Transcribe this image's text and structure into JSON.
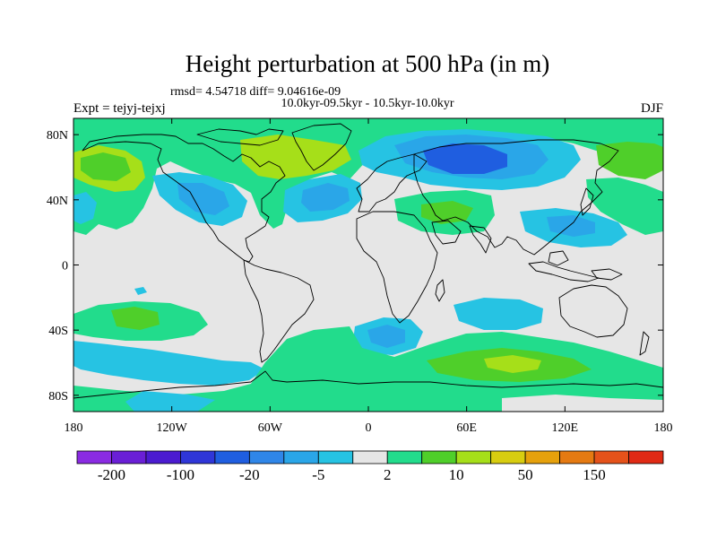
{
  "title": "Height perturbation at 500 hPa (in m)",
  "stats": "rmsd= 4.54718 diff= 9.04616e-09",
  "period": "10.0kyr-09.5kyr - 10.5kyr-10.0kyr",
  "experiment": "Expt = tejyj-tejxj",
  "season": "DJF",
  "map": {
    "lat_ticks": [
      {
        "value": 80,
        "label": "80N"
      },
      {
        "value": 40,
        "label": "40N"
      },
      {
        "value": 0,
        "label": "0"
      },
      {
        "value": -40,
        "label": "40S"
      },
      {
        "value": -80,
        "label": "80S"
      }
    ],
    "lon_ticks": [
      {
        "value": -180,
        "label": "180"
      },
      {
        "value": -120,
        "label": "120W"
      },
      {
        "value": -60,
        "label": "60W"
      },
      {
        "value": 0,
        "label": "0"
      },
      {
        "value": 60,
        "label": "60E"
      },
      {
        "value": 120,
        "label": "120E"
      },
      {
        "value": 180,
        "label": "180"
      }
    ]
  },
  "colorbar": {
    "colors": [
      "#8a2be2",
      "#6a1fd6",
      "#4b1bd0",
      "#2f36d8",
      "#1f5ee0",
      "#2f86e8",
      "#2aa6e8",
      "#26c3e3",
      "#e6e6e6",
      "#22dc8c",
      "#4fcf2a",
      "#a6df19",
      "#d8cd10",
      "#e6a10c",
      "#e57a12",
      "#e5521a",
      "#e02a15"
    ],
    "labels": [
      "-200",
      "-100",
      "-20",
      "-5",
      "2",
      "10",
      "50",
      "150"
    ]
  },
  "colors": {
    "background": "#e6e6e6",
    "coast": "#000000"
  }
}
